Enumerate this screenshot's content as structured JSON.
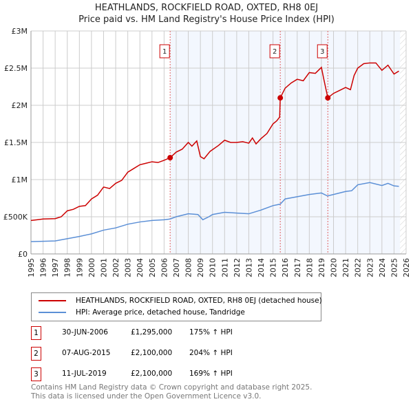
{
  "chart_data": {
    "type": "line",
    "title": "HEATHLANDS, ROCKFIELD ROAD, OXTED, RH8 0EJ",
    "subtitle": "Price paid vs. HM Land Registry's House Price Index (HPI)",
    "xlim": [
      1995,
      2026
    ],
    "ylim": [
      0,
      3000000
    ],
    "x_ticks": [
      "1995",
      "1996",
      "1997",
      "1998",
      "1999",
      "2000",
      "2001",
      "2002",
      "2003",
      "2004",
      "2005",
      "2006",
      "2007",
      "2008",
      "2009",
      "2010",
      "2011",
      "2012",
      "2013",
      "2014",
      "2015",
      "2016",
      "2017",
      "2018",
      "2019",
      "2020",
      "2021",
      "2022",
      "2023",
      "2024",
      "2025",
      "2026"
    ],
    "y_ticks": [
      {
        "v": 0,
        "label": "£0"
      },
      {
        "v": 500000,
        "label": "£500K"
      },
      {
        "v": 1000000,
        "label": "£1M"
      },
      {
        "v": 1500000,
        "label": "£1.5M"
      },
      {
        "v": 2000000,
        "label": "£2M"
      },
      {
        "v": 2500000,
        "label": "£2.5M"
      },
      {
        "v": 3000000,
        "label": "£3M"
      }
    ],
    "grid": true,
    "series": [
      {
        "name": "HEATHLANDS, ROCKFIELD ROAD, OXTED, RH8 0EJ (detached house)",
        "color": "#cc0000",
        "points": [
          [
            1995,
            450
          ],
          [
            1995.5,
            460
          ],
          [
            1996,
            470
          ],
          [
            1997,
            475
          ],
          [
            1997.5,
            500
          ],
          [
            1998,
            580
          ],
          [
            1998.5,
            600
          ],
          [
            1999,
            640
          ],
          [
            1999.5,
            650
          ],
          [
            2000,
            740
          ],
          [
            2000.5,
            790
          ],
          [
            2001,
            900
          ],
          [
            2001.5,
            880
          ],
          [
            2002,
            950
          ],
          [
            2002.5,
            990
          ],
          [
            2003,
            1100
          ],
          [
            2003.5,
            1150
          ],
          [
            2004,
            1200
          ],
          [
            2004.5,
            1220
          ],
          [
            2005,
            1240
          ],
          [
            2005.5,
            1230
          ],
          [
            2006,
            1260
          ],
          [
            2006.5,
            1295
          ],
          [
            2007,
            1370
          ],
          [
            2007.5,
            1410
          ],
          [
            2008,
            1500
          ],
          [
            2008.3,
            1450
          ],
          [
            2008.7,
            1520
          ],
          [
            2009,
            1310
          ],
          [
            2009.3,
            1280
          ],
          [
            2009.8,
            1380
          ],
          [
            2010.5,
            1460
          ],
          [
            2011,
            1530
          ],
          [
            2011.5,
            1500
          ],
          [
            2012,
            1500
          ],
          [
            2012.5,
            1510
          ],
          [
            2013,
            1490
          ],
          [
            2013.3,
            1560
          ],
          [
            2013.6,
            1480
          ],
          [
            2014,
            1550
          ],
          [
            2014.5,
            1620
          ],
          [
            2015,
            1750
          ],
          [
            2015.3,
            1790
          ],
          [
            2015.55,
            1840
          ],
          [
            2015.6,
            2100
          ],
          [
            2016,
            2230
          ],
          [
            2016.5,
            2300
          ],
          [
            2017,
            2350
          ],
          [
            2017.5,
            2330
          ],
          [
            2018,
            2440
          ],
          [
            2018.5,
            2430
          ],
          [
            2019,
            2510
          ],
          [
            2019.2,
            2350
          ],
          [
            2019.53,
            2100
          ],
          [
            2020,
            2160
          ],
          [
            2020.5,
            2200
          ],
          [
            2021,
            2240
          ],
          [
            2021.4,
            2210
          ],
          [
            2021.7,
            2400
          ],
          [
            2022,
            2500
          ],
          [
            2022.5,
            2560
          ],
          [
            2023,
            2570
          ],
          [
            2023.5,
            2570
          ],
          [
            2024,
            2470
          ],
          [
            2024.5,
            2540
          ],
          [
            2025,
            2420
          ],
          [
            2025.4,
            2460
          ]
        ]
      },
      {
        "name": "HPI: Average price, detached house, Tandridge",
        "color": "#5b8fd6",
        "points": [
          [
            1995,
            165
          ],
          [
            1996,
            170
          ],
          [
            1997,
            175
          ],
          [
            1998,
            205
          ],
          [
            1999,
            235
          ],
          [
            2000,
            270
          ],
          [
            2001,
            320
          ],
          [
            2002,
            350
          ],
          [
            2003,
            400
          ],
          [
            2004,
            430
          ],
          [
            2005,
            450
          ],
          [
            2006,
            460
          ],
          [
            2006.5,
            470
          ],
          [
            2007,
            500
          ],
          [
            2008,
            540
          ],
          [
            2008.8,
            530
          ],
          [
            2009.2,
            460
          ],
          [
            2009.7,
            500
          ],
          [
            2010,
            530
          ],
          [
            2011,
            560
          ],
          [
            2012,
            550
          ],
          [
            2013,
            540
          ],
          [
            2014,
            590
          ],
          [
            2015,
            650
          ],
          [
            2015.6,
            670
          ],
          [
            2016,
            740
          ],
          [
            2017,
            770
          ],
          [
            2018,
            800
          ],
          [
            2019,
            820
          ],
          [
            2019.5,
            780
          ],
          [
            2020,
            800
          ],
          [
            2021,
            840
          ],
          [
            2021.5,
            850
          ],
          [
            2022,
            930
          ],
          [
            2023,
            960
          ],
          [
            2024,
            920
          ],
          [
            2024.5,
            950
          ],
          [
            2025,
            915
          ],
          [
            2025.4,
            910
          ]
        ]
      }
    ],
    "sales": [
      {
        "id": "1",
        "date": "30-JUN-2006",
        "x": 2006.5,
        "price": "£1,295,000",
        "value": 1295000,
        "hpi": "175% ↑ HPI"
      },
      {
        "id": "2",
        "date": "07-AUG-2015",
        "x": 2015.6,
        "price": "£2,100,000",
        "value": 2100000,
        "hpi": "204% ↑ HPI"
      },
      {
        "id": "3",
        "date": "11-JUL-2019",
        "x": 2019.53,
        "price": "£2,100,000",
        "value": 2100000,
        "hpi": "169% ↑ HPI"
      }
    ],
    "forecast_from": 2025.5
  },
  "footer": [
    "Contains HM Land Registry data © Crown copyright and database right 2025.",
    "This data is licensed under the Open Government Licence v3.0."
  ]
}
